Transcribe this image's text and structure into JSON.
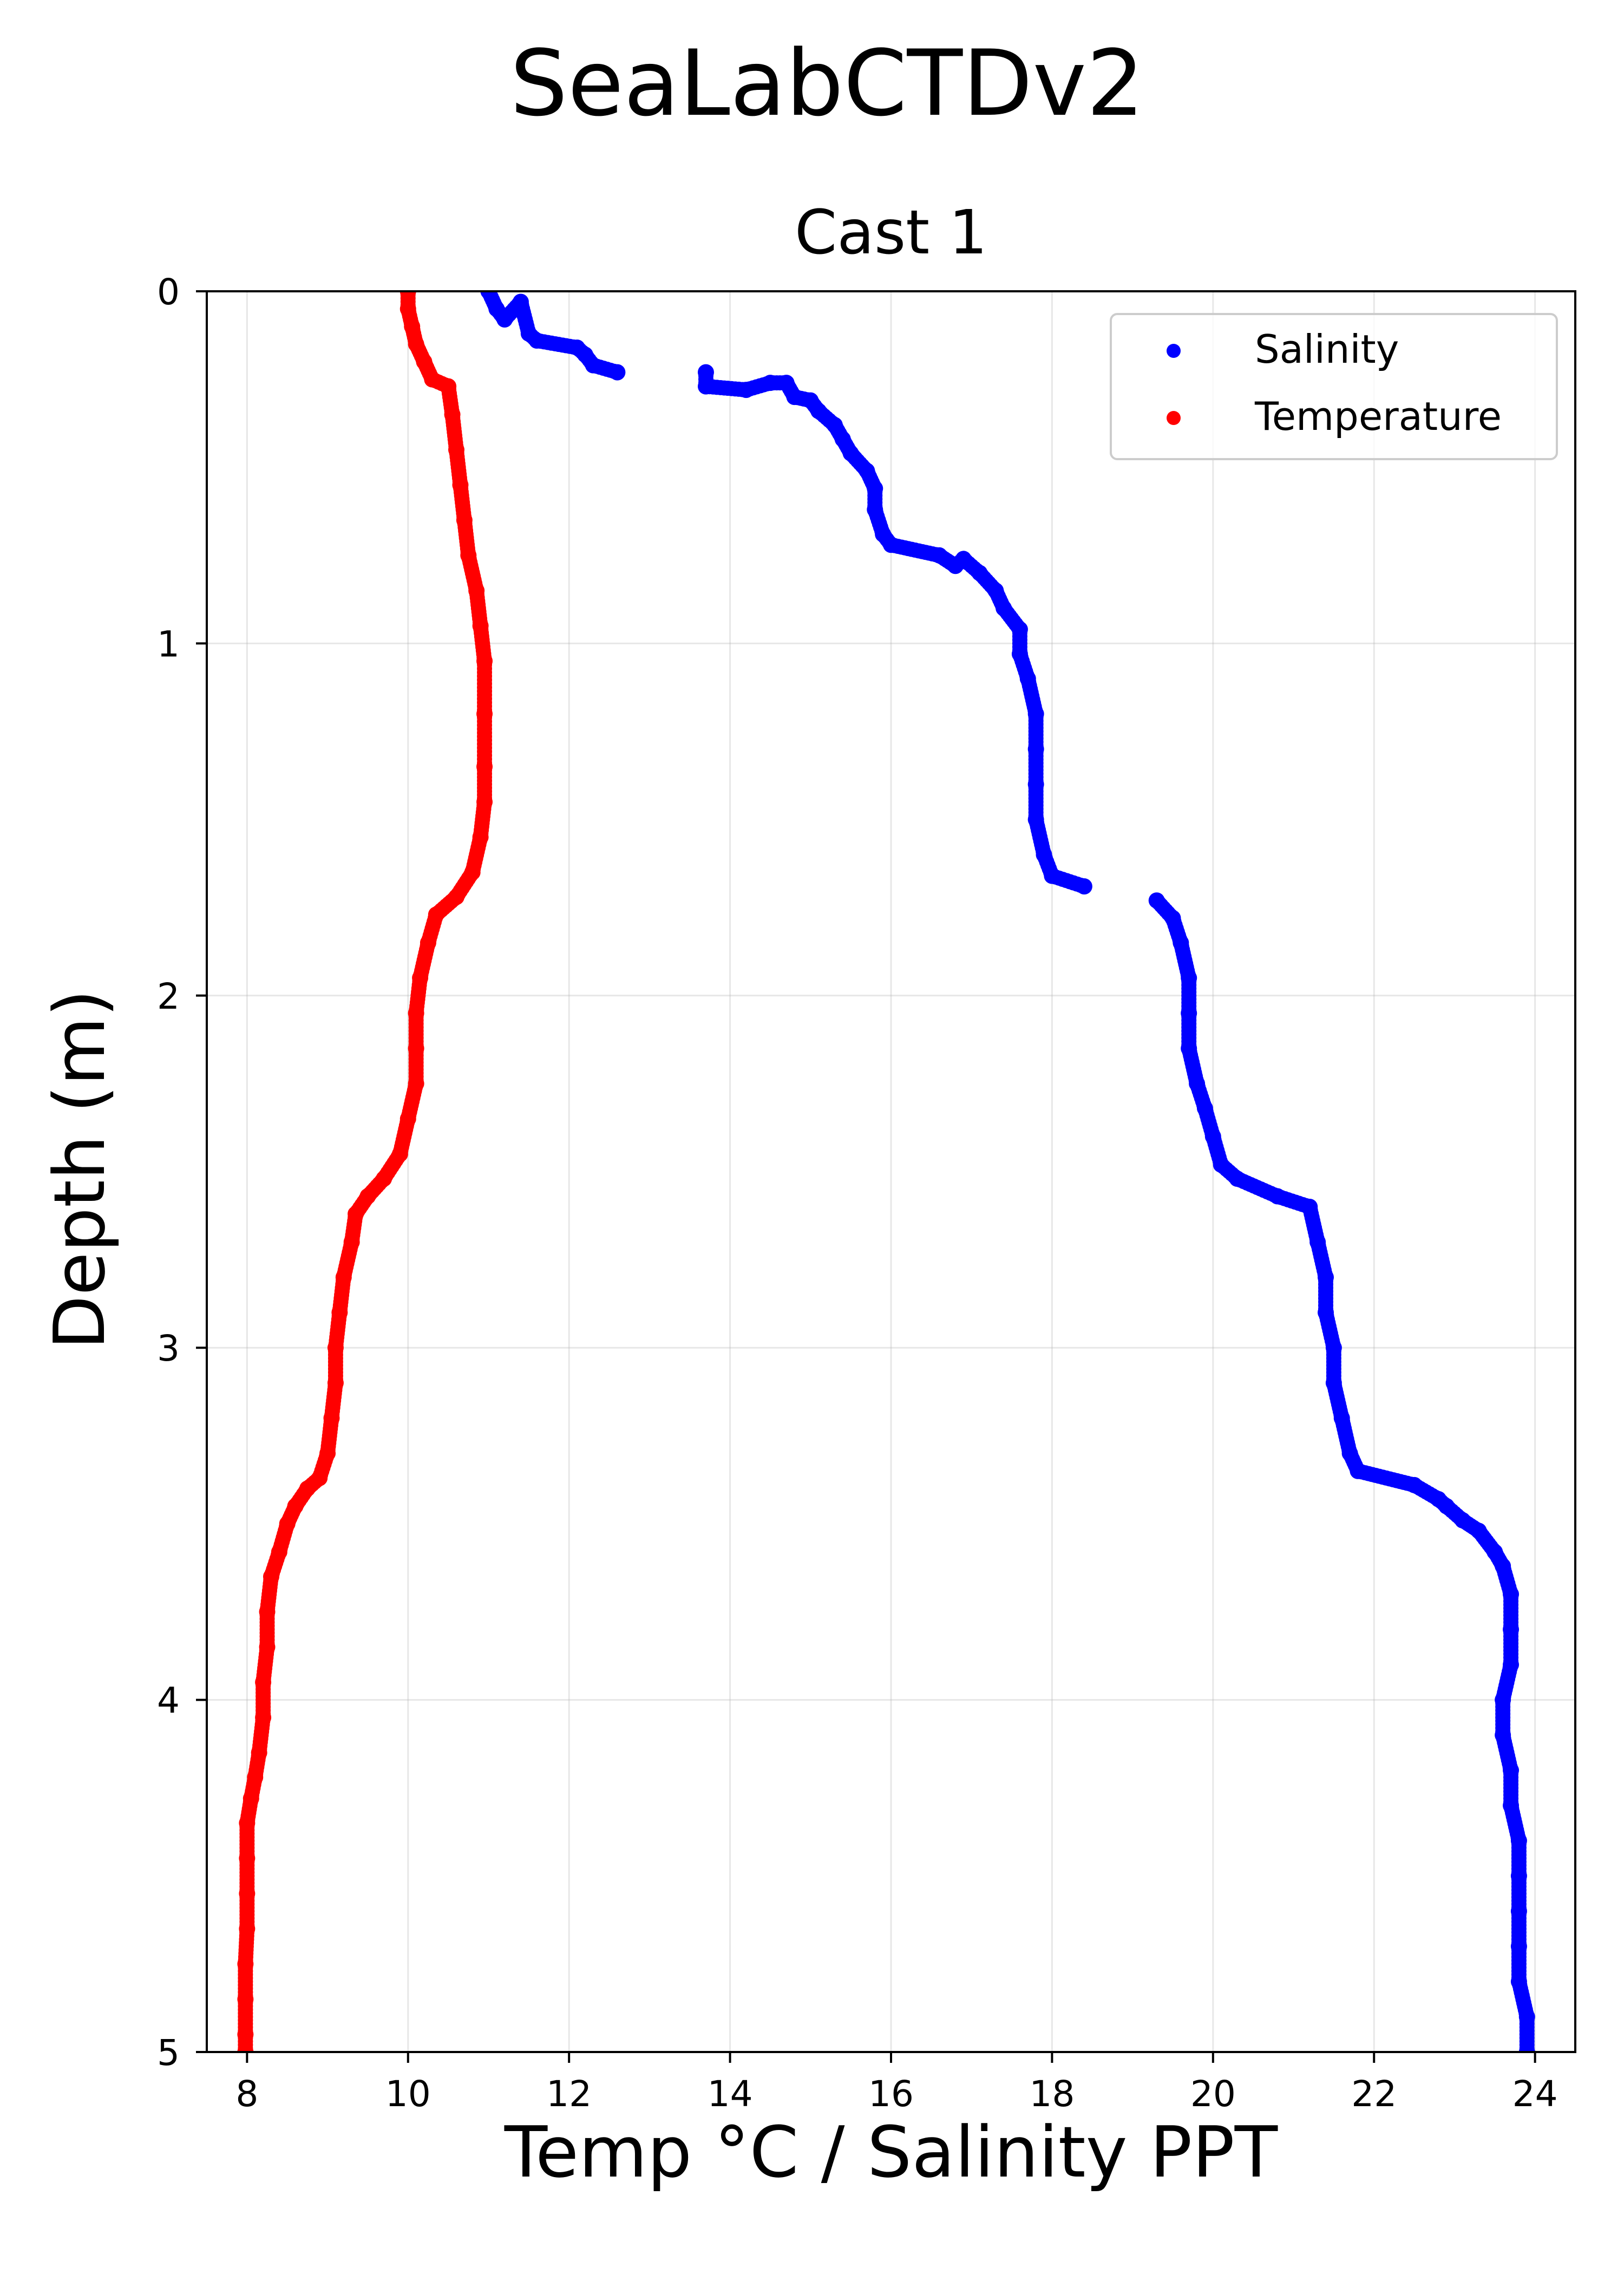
{
  "chart_data": {
    "type": "scatter",
    "title": "SeaLabCTDv2",
    "subtitle": "Cast 1",
    "xlabel": "Temp °C / Salinity PPT",
    "ylabel": "Depth (m)",
    "xlim": [
      7.5,
      24.5
    ],
    "ylim": [
      5,
      0
    ],
    "y_inverted": true,
    "grid": true,
    "legend_position": "top-right",
    "xticks": [
      8,
      10,
      12,
      14,
      16,
      18,
      20,
      22,
      24
    ],
    "yticks": [
      0,
      1,
      2,
      3,
      4,
      5
    ],
    "series": [
      {
        "name": "Salinity",
        "color": "#0000ff",
        "points": [
          [
            11.0,
            0.0
          ],
          [
            11.1,
            0.05
          ],
          [
            11.2,
            0.08
          ],
          [
            11.4,
            0.03
          ],
          [
            11.5,
            0.12
          ],
          [
            11.6,
            0.14
          ],
          [
            12.1,
            0.16
          ],
          [
            12.2,
            0.18
          ],
          [
            12.3,
            0.21
          ],
          [
            12.6,
            0.23
          ],
          [
            13.7,
            0.23
          ],
          [
            13.7,
            0.27
          ],
          [
            14.2,
            0.28
          ],
          [
            14.5,
            0.26
          ],
          [
            14.7,
            0.26
          ],
          [
            14.8,
            0.3
          ],
          [
            15.0,
            0.31
          ],
          [
            15.1,
            0.34
          ],
          [
            15.3,
            0.38
          ],
          [
            15.4,
            0.42
          ],
          [
            15.5,
            0.46
          ],
          [
            15.7,
            0.51
          ],
          [
            15.8,
            0.56
          ],
          [
            15.8,
            0.62
          ],
          [
            15.9,
            0.69
          ],
          [
            16.0,
            0.72
          ],
          [
            16.6,
            0.75
          ],
          [
            16.8,
            0.78
          ],
          [
            16.9,
            0.76
          ],
          [
            17.1,
            0.8
          ],
          [
            17.3,
            0.85
          ],
          [
            17.4,
            0.9
          ],
          [
            17.6,
            0.96
          ],
          [
            17.6,
            1.03
          ],
          [
            17.7,
            1.1
          ],
          [
            17.8,
            1.2
          ],
          [
            17.8,
            1.3
          ],
          [
            17.8,
            1.4
          ],
          [
            17.8,
            1.5
          ],
          [
            17.9,
            1.6
          ],
          [
            18.0,
            1.66
          ],
          [
            18.4,
            1.69
          ],
          [
            19.3,
            1.73
          ],
          [
            19.5,
            1.78
          ],
          [
            19.6,
            1.85
          ],
          [
            19.7,
            1.95
          ],
          [
            19.7,
            2.05
          ],
          [
            19.7,
            2.15
          ],
          [
            19.8,
            2.25
          ],
          [
            19.9,
            2.32
          ],
          [
            20.0,
            2.4
          ],
          [
            20.1,
            2.48
          ],
          [
            20.3,
            2.52
          ],
          [
            20.8,
            2.57
          ],
          [
            21.2,
            2.6
          ],
          [
            21.3,
            2.7
          ],
          [
            21.4,
            2.8
          ],
          [
            21.4,
            2.9
          ],
          [
            21.5,
            3.0
          ],
          [
            21.5,
            3.1
          ],
          [
            21.6,
            3.2
          ],
          [
            21.7,
            3.3
          ],
          [
            21.8,
            3.35
          ],
          [
            22.5,
            3.39
          ],
          [
            22.8,
            3.43
          ],
          [
            22.9,
            3.45
          ],
          [
            23.1,
            3.49
          ],
          [
            23.3,
            3.52
          ],
          [
            23.5,
            3.58
          ],
          [
            23.6,
            3.62
          ],
          [
            23.7,
            3.7
          ],
          [
            23.7,
            3.8
          ],
          [
            23.7,
            3.9
          ],
          [
            23.6,
            4.0
          ],
          [
            23.6,
            4.1
          ],
          [
            23.7,
            4.2
          ],
          [
            23.7,
            4.3
          ],
          [
            23.8,
            4.4
          ],
          [
            23.8,
            4.5
          ],
          [
            23.8,
            4.6
          ],
          [
            23.8,
            4.7
          ],
          [
            23.8,
            4.8
          ],
          [
            23.9,
            4.9
          ],
          [
            23.9,
            5.0
          ]
        ]
      },
      {
        "name": "Temperature",
        "color": "#ff0000",
        "points": [
          [
            10.0,
            0.0
          ],
          [
            10.0,
            0.05
          ],
          [
            10.05,
            0.1
          ],
          [
            10.1,
            0.15
          ],
          [
            10.2,
            0.2
          ],
          [
            10.3,
            0.25
          ],
          [
            10.5,
            0.27
          ],
          [
            10.55,
            0.35
          ],
          [
            10.6,
            0.45
          ],
          [
            10.65,
            0.55
          ],
          [
            10.7,
            0.65
          ],
          [
            10.75,
            0.75
          ],
          [
            10.85,
            0.85
          ],
          [
            10.9,
            0.95
          ],
          [
            10.95,
            1.05
          ],
          [
            10.95,
            1.2
          ],
          [
            10.95,
            1.35
          ],
          [
            10.95,
            1.45
          ],
          [
            10.9,
            1.55
          ],
          [
            10.8,
            1.65
          ],
          [
            10.6,
            1.72
          ],
          [
            10.35,
            1.77
          ],
          [
            10.25,
            1.85
          ],
          [
            10.15,
            1.95
          ],
          [
            10.1,
            2.05
          ],
          [
            10.1,
            2.15
          ],
          [
            10.1,
            2.25
          ],
          [
            10.0,
            2.35
          ],
          [
            9.9,
            2.45
          ],
          [
            9.7,
            2.52
          ],
          [
            9.5,
            2.57
          ],
          [
            9.35,
            2.62
          ],
          [
            9.3,
            2.7
          ],
          [
            9.2,
            2.8
          ],
          [
            9.15,
            2.9
          ],
          [
            9.1,
            3.0
          ],
          [
            9.1,
            3.1
          ],
          [
            9.05,
            3.2
          ],
          [
            9.0,
            3.3
          ],
          [
            8.9,
            3.37
          ],
          [
            8.75,
            3.4
          ],
          [
            8.6,
            3.45
          ],
          [
            8.5,
            3.5
          ],
          [
            8.4,
            3.58
          ],
          [
            8.3,
            3.65
          ],
          [
            8.25,
            3.75
          ],
          [
            8.25,
            3.85
          ],
          [
            8.2,
            3.95
          ],
          [
            8.2,
            4.05
          ],
          [
            8.15,
            4.15
          ],
          [
            8.1,
            4.22
          ],
          [
            8.05,
            4.28
          ],
          [
            8.0,
            4.35
          ],
          [
            8.0,
            4.45
          ],
          [
            8.0,
            4.55
          ],
          [
            8.0,
            4.65
          ],
          [
            7.98,
            4.75
          ],
          [
            7.98,
            4.85
          ],
          [
            7.98,
            4.95
          ],
          [
            7.98,
            5.0
          ]
        ]
      }
    ]
  }
}
